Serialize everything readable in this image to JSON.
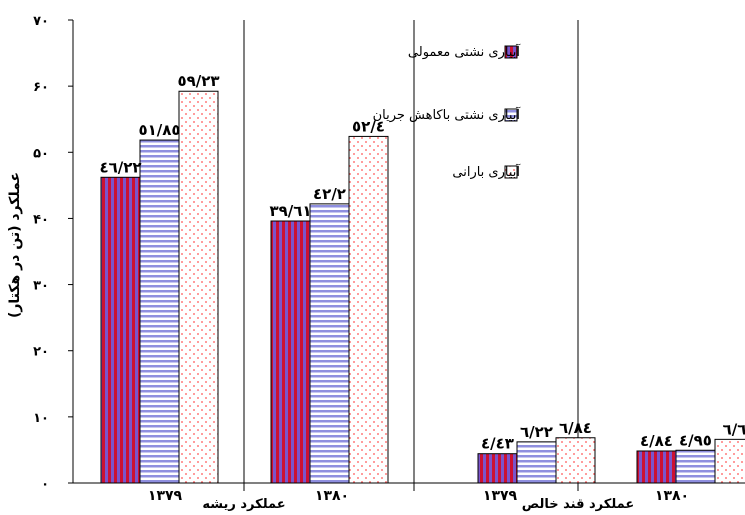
{
  "chart_data": {
    "type": "bar",
    "ylabel": "عملکرد (تن در هکتار)",
    "ylim": [
      0,
      70
    ],
    "yticks": [
      "۰",
      "۱۰",
      "۲۰",
      "۳۰",
      "۴۰",
      "۵۰",
      "۶۰",
      "۷۰"
    ],
    "categories": [
      "۱۳۷۹",
      "۱۳۸۰",
      "۱۳۷۹",
      "۱۳۸۰"
    ],
    "groups": [
      "عملکرد ریشه",
      "عملکرد قند خالص"
    ],
    "series": [
      {
        "name": "آبیاری نشتی معمولی",
        "values": [
          46.22,
          39.61,
          4.43,
          4.84
        ],
        "labels": [
          "٤٦/٢٢",
          "٣٩/٦١",
          "٤/٤٣",
          "٤/٨٤"
        ],
        "color": "#cc1133"
      },
      {
        "name": "آبیاری نشتی باکاهش جریان",
        "values": [
          51.85,
          42.2,
          6.22,
          4.95
        ],
        "labels": [
          "٥١/٨٥",
          "٤٢/٢",
          "٦/٢٢",
          "٤/٩٥"
        ],
        "color": "#8888dd"
      },
      {
        "name": "آبیاری بارانی",
        "values": [
          59.23,
          52.4,
          6.84,
          6.6
        ],
        "labels": [
          "٥٩/٢٣",
          "٥٢/٤",
          "٦/٨٤",
          "٦/٦"
        ],
        "color": "#ff6666"
      }
    ],
    "grid": false,
    "legend": "top-right"
  }
}
